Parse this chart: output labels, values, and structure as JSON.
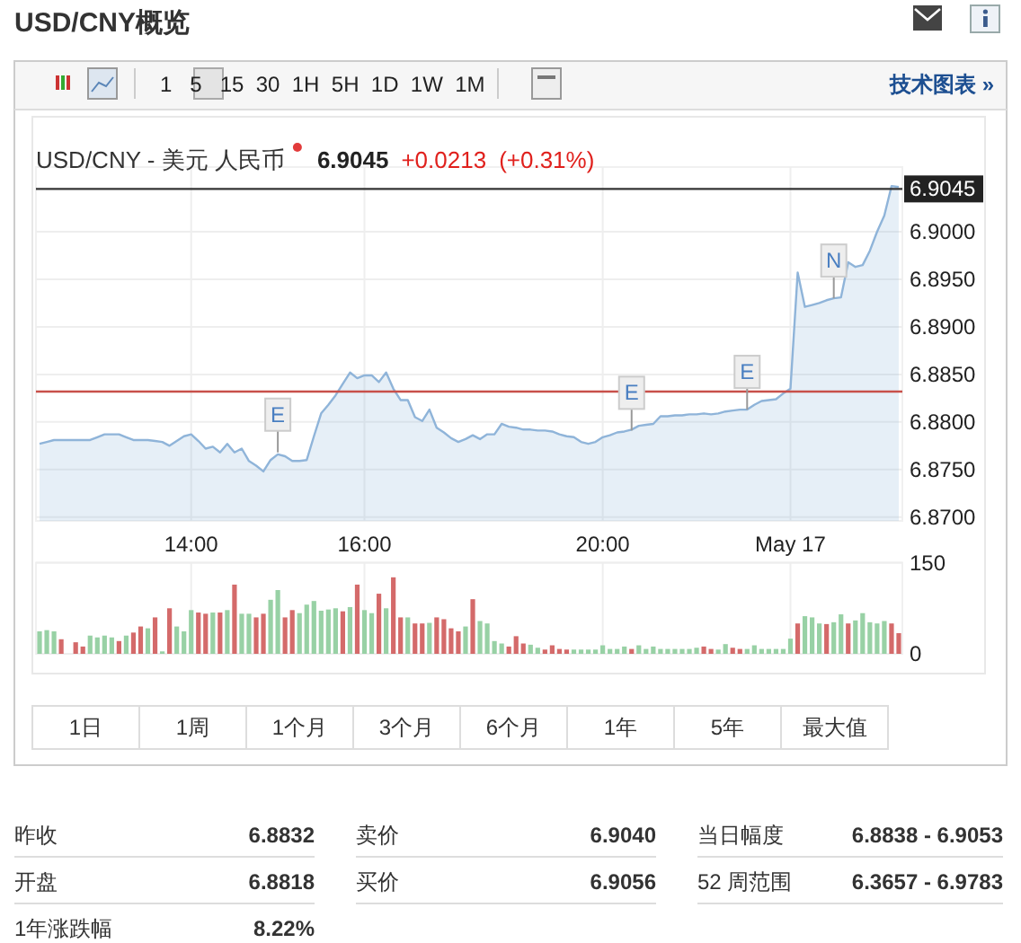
{
  "chart_data": [
    {
      "type": "other",
      "title": "USD/CNY概览",
      "annotations": [
        "1   5   15  30  1H  5H  1D  1W  1M",
        "技术图表 »"
      ]
    },
    {
      "type": "area",
      "title": "USD/CNY - 美元 人民币",
      "color": "#8fb4d9",
      "grid": true,
      "annotations": [
        "6.9045",
        "+0.0213",
        "(+0.31%)",
        {
          "text": "E",
          "y": 6.8768
        },
        {
          "text": "E",
          "y": 6.8791
        },
        {
          "text": "E",
          "y": 6.8813
        },
        {
          "text": "N",
          "y": 6.893
        }
      ],
      "ref_lines": [
        {
          "axis": "y",
          "value": 6.9045,
          "label": "6.9045",
          "color": "#333333"
        },
        {
          "axis": "y",
          "value": 6.8832,
          "color": "#c8504a"
        }
      ],
      "categories": [
        null,
        null,
        null,
        null,
        null,
        null,
        null,
        null,
        null,
        null,
        null,
        null,
        null,
        null,
        null,
        null,
        null,
        null,
        null,
        null,
        null,
        "14:00",
        null,
        null,
        null,
        null,
        null,
        null,
        null,
        null,
        null,
        null,
        null,
        null,
        null,
        null,
        null,
        null,
        null,
        null,
        null,
        null,
        null,
        null,
        null,
        "16:00",
        null,
        null,
        null,
        null,
        null,
        null,
        null,
        null,
        null,
        null,
        null,
        null,
        null,
        null,
        null,
        null,
        null,
        null,
        null,
        null,
        null,
        null,
        null,
        null,
        null,
        null,
        null,
        null,
        null,
        null,
        null,
        null,
        "20:00",
        null,
        null,
        null,
        null,
        null,
        null,
        null,
        null,
        null,
        null,
        null,
        null,
        null,
        null,
        null,
        null,
        null,
        null,
        null,
        null,
        null,
        null,
        null,
        null,
        null,
        "May 17",
        null,
        null,
        null,
        null,
        null,
        null,
        null,
        null,
        null,
        null,
        null,
        null,
        null,
        null,
        null
      ],
      "ylim": [
        6.8696,
        6.9068
      ],
      "yticks": [
        {
          "value": 6.87,
          "label": "6.8700"
        },
        {
          "value": 6.875,
          "label": "6.8750"
        },
        {
          "value": 6.88,
          "label": "6.8800"
        },
        {
          "value": 6.885,
          "label": "6.8850"
        },
        {
          "value": 6.89,
          "label": "6.8900"
        },
        {
          "value": 6.895,
          "label": "6.8950"
        },
        {
          "value": 6.9,
          "label": "6.9000"
        }
      ],
      "values": [
        6.8777,
        6.8779,
        6.8781,
        6.8781,
        6.8781,
        6.8781,
        6.8781,
        6.8781,
        6.8784,
        6.8787,
        6.8787,
        6.8787,
        6.8784,
        6.8781,
        6.8781,
        6.8781,
        6.878,
        6.8779,
        6.8775,
        6.878,
        6.8785,
        6.8787,
        6.878,
        6.8772,
        6.8774,
        6.8768,
        6.8777,
        6.8768,
        6.8772,
        6.8759,
        6.8754,
        6.8748,
        6.876,
        6.8766,
        6.8764,
        6.8759,
        6.8759,
        6.876,
        6.8785,
        6.8809,
        6.8818,
        6.8828,
        6.884,
        6.8852,
        6.8846,
        6.8849,
        6.8849,
        6.8842,
        6.8852,
        6.8835,
        6.8823,
        6.8823,
        6.8805,
        6.8801,
        6.8813,
        6.8794,
        6.8789,
        6.8783,
        6.8779,
        6.8782,
        6.8786,
        6.8782,
        6.8787,
        6.8787,
        6.8798,
        6.8795,
        6.8794,
        6.8792,
        6.8792,
        6.8791,
        6.8791,
        6.879,
        6.8787,
        6.8785,
        6.8784,
        6.8779,
        6.8777,
        6.8779,
        6.8784,
        6.8786,
        6.8789,
        6.879,
        6.8792,
        6.8796,
        6.8797,
        6.8798,
        6.8806,
        6.8806,
        6.8807,
        6.8807,
        6.8808,
        6.8808,
        6.8809,
        6.8808,
        6.8809,
        6.8811,
        6.8812,
        6.8813,
        6.8813,
        6.8818,
        6.8822,
        6.8823,
        6.8824,
        6.883,
        6.8835,
        6.8957,
        6.8921,
        6.8923,
        6.8925,
        6.8928,
        6.893,
        6.8931,
        6.8968,
        6.8963,
        6.8965,
        6.898,
        6.9,
        6.9017,
        6.9048,
        6.9047
      ]
    },
    {
      "type": "bar",
      "grid": true,
      "tick_labels": "y",
      "categories": [
        null,
        null,
        null,
        null,
        null,
        null,
        null,
        null,
        null,
        null,
        null,
        null,
        null,
        null,
        null,
        null,
        null,
        null,
        null,
        null,
        null,
        null,
        null,
        null,
        null,
        null,
        null,
        null,
        null,
        null,
        null,
        null,
        null,
        null,
        null,
        null,
        null,
        null,
        null,
        null,
        null,
        null,
        null,
        null,
        null,
        null,
        null,
        null,
        null,
        null,
        null,
        null,
        null,
        null,
        null,
        null,
        null,
        null,
        null,
        null,
        null,
        null,
        null,
        null,
        null,
        null,
        null,
        null,
        null,
        null,
        null,
        null,
        null,
        null,
        null,
        null,
        null,
        null,
        null,
        null,
        null,
        null,
        null,
        null,
        null,
        null,
        null,
        null,
        null,
        null,
        null,
        null,
        null,
        null,
        null,
        null,
        null,
        null,
        null,
        null,
        null,
        null,
        null,
        null,
        null,
        null,
        null,
        null,
        null,
        null,
        null,
        null,
        null,
        null,
        null,
        null,
        null,
        null,
        null,
        null
      ],
      "ylim": [
        0,
        150
      ],
      "yticks": [
        0,
        150
      ],
      "values": [
        37,
        39,
        37,
        24,
        null,
        19,
        12,
        30,
        27,
        30,
        27,
        21,
        30,
        35,
        45,
        42,
        60,
        4,
        75,
        45,
        37,
        72,
        68,
        66,
        68,
        68,
        72,
        114,
        66,
        66,
        60,
        66,
        89,
        105,
        60,
        72,
        67,
        81,
        87,
        71,
        73,
        75,
        70,
        77,
        114,
        72,
        67,
        99,
        75,
        126,
        60,
        60,
        50,
        50,
        51,
        60,
        57,
        42,
        37,
        45,
        90,
        54,
        50,
        21,
        17,
        12,
        29,
        17,
        15,
        10,
        7,
        14,
        8,
        7,
        7,
        7,
        7,
        7,
        14,
        8,
        8,
        12,
        8,
        14,
        8,
        12,
        8,
        8,
        8,
        8,
        8,
        10,
        12,
        8,
        7,
        16,
        10,
        8,
        8,
        14,
        8,
        8,
        8,
        8,
        25,
        50,
        62,
        60,
        50,
        49,
        52,
        65,
        50,
        55,
        67,
        52,
        50,
        54,
        50,
        34
      ],
      "colors": [
        "#98d1a5",
        "#98d1a5",
        "#98d1a5",
        "#d46a6a",
        null,
        "#d46a6a",
        "#d46a6a",
        "#98d1a5",
        "#98d1a5",
        "#98d1a5",
        "#98d1a5",
        "#d46a6a",
        "#98d1a5",
        "#d46a6a",
        "#d46a6a",
        "#98d1a5",
        "#d46a6a",
        "#98d1a5",
        "#d46a6a",
        "#98d1a5",
        "#98d1a5",
        "#98d1a5",
        "#d46a6a",
        "#d46a6a",
        "#98d1a5",
        "#d46a6a",
        "#98d1a5",
        "#d46a6a",
        "#98d1a5",
        "#98d1a5",
        "#d46a6a",
        "#d46a6a",
        "#98d1a5",
        "#98d1a5",
        "#d46a6a",
        "#d46a6a",
        "#98d1a5",
        "#98d1a5",
        "#98d1a5",
        "#98d1a5",
        "#98d1a5",
        "#98d1a5",
        "#d46a6a",
        "#98d1a5",
        "#d46a6a",
        "#98d1a5",
        "#98d1a5",
        "#d46a6a",
        "#98d1a5",
        "#d46a6a",
        "#d46a6a",
        "#98d1a5",
        "#d46a6a",
        "#d46a6a",
        "#98d1a5",
        "#d46a6a",
        "#d46a6a",
        "#d46a6a",
        "#d46a6a",
        "#98d1a5",
        "#d46a6a",
        "#98d1a5",
        "#98d1a5",
        "#98d1a5",
        "#98d1a5",
        "#d46a6a",
        "#d46a6a",
        "#d46a6a",
        "#98d1a5",
        "#98d1a5",
        "#d46a6a",
        "#d46a6a",
        "#d46a6a",
        "#d46a6a",
        "#98d1a5",
        "#98d1a5",
        "#98d1a5",
        "#98d1a5",
        "#98d1a5",
        "#98d1a5",
        "#98d1a5",
        "#98d1a5",
        "#d46a6a",
        "#98d1a5",
        "#98d1a5",
        "#98d1a5",
        "#98d1a5",
        "#98d1a5",
        "#98d1a5",
        "#98d1a5",
        "#98d1a5",
        "#98d1a5",
        "#d46a6a",
        "#d46a6a",
        "#98d1a5",
        "#98d1a5",
        "#d46a6a",
        "#d46a6a",
        "#98d1a5",
        "#98d1a5",
        "#98d1a5",
        "#98d1a5",
        "#98d1a5",
        "#98d1a5",
        "#98d1a5",
        "#d46a6a",
        "#98d1a5",
        "#98d1a5",
        "#98d1a5",
        "#d46a6a",
        "#98d1a5",
        "#98d1a5",
        "#d46a6a",
        "#98d1a5",
        "#98d1a5",
        "#98d1a5",
        "#98d1a5",
        "#98d1a5",
        "#d46a6a",
        "#d46a6a"
      ]
    },
    {
      "type": "other",
      "annotations": [
        "1日",
        "1周",
        "1个月",
        "3个月",
        "6个月",
        "1年",
        "5年",
        "最大值"
      ]
    },
    {
      "type": "other",
      "annotations": [
        "昨收",
        "6.8832",
        "卖价",
        "6.9040",
        "当日幅度",
        "6.8838 - 6.9053",
        "开盘",
        "6.8818",
        "买价",
        "6.9056",
        "52 周范围",
        "6.3657 - 6.9783",
        "1年涨跌幅",
        "8.22%"
      ]
    }
  ]
}
